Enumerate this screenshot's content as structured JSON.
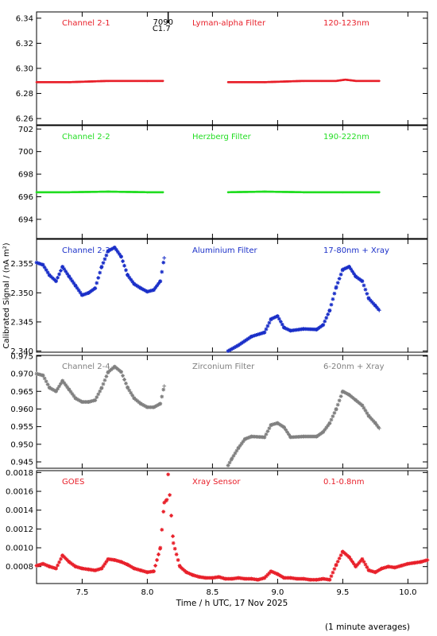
{
  "footer_note": "(1 minute averages)",
  "chart_data": [
    {
      "type": "scatter",
      "ylim": [
        6.255,
        6.345
      ],
      "yticks": [
        6.26,
        6.28,
        6.3,
        6.32,
        6.34
      ],
      "ytick_labels": [
        "6.26",
        "6.28",
        "6.30",
        "6.32",
        "6.34"
      ],
      "color": "#e8202a",
      "labels": {
        "channel": "Channel 2-1",
        "filter": "Lyman-alpha Filter",
        "band": "120-123nm"
      },
      "annotations": [
        {
          "text": "7090",
          "x": 8.15,
          "y": 6.34
        },
        {
          "text": "C1.7",
          "x": 8.13,
          "y": 6.335
        }
      ],
      "event_line_x": 8.16,
      "series": [
        {
          "x": [
            7.15,
            7.4,
            7.7,
            8.0,
            8.12
          ],
          "y": [
            6.289,
            6.289,
            6.29,
            6.29,
            6.29
          ]
        },
        {
          "x": [
            8.62,
            8.9,
            9.2,
            9.45,
            9.52,
            9.6,
            9.78
          ],
          "y": [
            6.289,
            6.289,
            6.29,
            6.29,
            6.291,
            6.29,
            6.29
          ]
        }
      ]
    },
    {
      "type": "scatter",
      "ylim": [
        692.3,
        702.3
      ],
      "yticks": [
        694,
        696,
        698,
        700,
        702
      ],
      "ytick_labels": [
        "694",
        "696",
        "698",
        "700",
        "702"
      ],
      "color": "#22dd22",
      "labels": {
        "channel": "Channel 2-2",
        "filter": "Herzberg Filter",
        "band": "190-222nm"
      },
      "series": [
        {
          "x": [
            7.15,
            7.4,
            7.7,
            8.0,
            8.12
          ],
          "y": [
            696.4,
            696.4,
            696.45,
            696.4,
            696.4
          ]
        },
        {
          "x": [
            8.62,
            8.9,
            9.2,
            9.5,
            9.78
          ],
          "y": [
            696.4,
            696.45,
            696.4,
            696.4,
            696.4
          ]
        }
      ]
    },
    {
      "type": "scatter",
      "ylim": [
        2.3398,
        2.3592
      ],
      "yticks": [
        2.34,
        2.345,
        2.35,
        2.355
      ],
      "ytick_labels": [
        "2.340",
        "2.345",
        "2.350",
        "2.355"
      ],
      "color": "#1a2fc8",
      "labels": {
        "channel": "Channel 2-3",
        "filter": "Aluminium Filter",
        "band": "17-80nm + Xray"
      },
      "ylabel": "Calibrated Signal / (nA m²)",
      "series": [
        {
          "x": [
            7.15,
            7.2,
            7.25,
            7.3,
            7.35,
            7.4,
            7.45,
            7.5,
            7.55,
            7.6,
            7.65,
            7.7,
            7.75,
            7.8,
            7.85,
            7.9,
            7.95,
            8.0,
            8.05,
            8.1,
            8.13
          ],
          "y": [
            2.3552,
            2.3548,
            2.353,
            2.352,
            2.3545,
            2.3528,
            2.3512,
            2.3496,
            2.35,
            2.3508,
            2.3545,
            2.3572,
            2.3578,
            2.3562,
            2.353,
            2.3515,
            2.3508,
            2.3502,
            2.3505,
            2.352,
            2.356
          ]
        },
        {
          "x": [
            8.62,
            8.7,
            8.8,
            8.9,
            8.95,
            9.0,
            9.05,
            9.1,
            9.2,
            9.3,
            9.35,
            9.4,
            9.45,
            9.5,
            9.55,
            9.6,
            9.65,
            9.7,
            9.75,
            9.78
          ],
          "y": [
            2.34,
            2.341,
            2.3425,
            2.3432,
            2.3455,
            2.346,
            2.344,
            2.3435,
            2.3438,
            2.3437,
            2.3445,
            2.347,
            2.351,
            2.354,
            2.3545,
            2.3528,
            2.352,
            2.349,
            2.3478,
            2.347
          ]
        }
      ]
    },
    {
      "type": "scatter",
      "ylim": [
        0.9432,
        0.9752
      ],
      "yticks": [
        0.945,
        0.95,
        0.955,
        0.96,
        0.965,
        0.97,
        0.975
      ],
      "ytick_labels": [
        "0.945",
        "0.950",
        "0.955",
        "0.960",
        "0.965",
        "0.970",
        "0.975"
      ],
      "color": "#808080",
      "labels": {
        "channel": "Channel 2-4",
        "filter": "Zirconium Filter",
        "band": "6-20nm + Xray"
      },
      "series": [
        {
          "x": [
            7.15,
            7.2,
            7.25,
            7.3,
            7.35,
            7.4,
            7.45,
            7.5,
            7.55,
            7.6,
            7.65,
            7.7,
            7.75,
            7.8,
            7.85,
            7.9,
            7.95,
            8.0,
            8.05,
            8.1,
            8.13
          ],
          "y": [
            0.97,
            0.9695,
            0.966,
            0.965,
            0.968,
            0.9655,
            0.963,
            0.962,
            0.962,
            0.9625,
            0.966,
            0.9705,
            0.972,
            0.9705,
            0.966,
            0.963,
            0.9615,
            0.9605,
            0.9605,
            0.9615,
            0.9665
          ]
        },
        {
          "x": [
            8.62,
            8.65,
            8.7,
            8.75,
            8.8,
            8.9,
            8.95,
            9.0,
            9.05,
            9.1,
            9.2,
            9.3,
            9.35,
            9.4,
            9.45,
            9.5,
            9.55,
            9.6,
            9.65,
            9.7,
            9.75,
            9.78
          ],
          "y": [
            0.944,
            0.946,
            0.949,
            0.9515,
            0.9522,
            0.952,
            0.9555,
            0.956,
            0.9548,
            0.952,
            0.9522,
            0.9522,
            0.9535,
            0.956,
            0.96,
            0.965,
            0.964,
            0.9625,
            0.961,
            0.958,
            0.956,
            0.9545
          ]
        }
      ]
    },
    {
      "type": "scatter",
      "ylim": [
        0.00062,
        0.00182
      ],
      "yticks": [
        0.0008,
        0.001,
        0.0012,
        0.0014,
        0.0016,
        0.0018
      ],
      "ytick_labels": [
        "0.0008",
        "0.0010",
        "0.0012",
        "0.0014",
        "0.0016",
        "0.0018"
      ],
      "color": "#e8202a",
      "labels": {
        "channel": "GOES",
        "filter": "Xray Sensor",
        "band": "0.1-0.8nm"
      },
      "series": [
        {
          "x": [
            7.15,
            7.2,
            7.25,
            7.3,
            7.35,
            7.4,
            7.45,
            7.5,
            7.55,
            7.6,
            7.65,
            7.7,
            7.75,
            7.8,
            7.85,
            7.9,
            7.95,
            8.0,
            8.05,
            8.1,
            8.13,
            8.15,
            8.16,
            8.2,
            8.25,
            8.3,
            8.35,
            8.4,
            8.45,
            8.5,
            8.55,
            8.6,
            8.65,
            8.7,
            8.75,
            8.8,
            8.85,
            8.9,
            8.95,
            9.0,
            9.05,
            9.1,
            9.15,
            9.2,
            9.25,
            9.3,
            9.35,
            9.4,
            9.45,
            9.5,
            9.55,
            9.6,
            9.65,
            9.7,
            9.75,
            9.8,
            9.85,
            9.9,
            9.95,
            10.0,
            10.05,
            10.1,
            10.15
          ],
          "y": [
            0.00081,
            0.00083,
            0.0008,
            0.00078,
            0.00092,
            0.00085,
            0.0008,
            0.00078,
            0.00077,
            0.00076,
            0.00078,
            0.00088,
            0.00087,
            0.00085,
            0.00082,
            0.00078,
            0.00076,
            0.00074,
            0.00075,
            0.001,
            0.00148,
            0.00151,
            0.00178,
            0.00105,
            0.0008,
            0.00074,
            0.00071,
            0.00069,
            0.00068,
            0.00068,
            0.00069,
            0.00067,
            0.00067,
            0.00068,
            0.00067,
            0.00067,
            0.00066,
            0.00068,
            0.00075,
            0.00072,
            0.00068,
            0.00068,
            0.00067,
            0.00067,
            0.00066,
            0.00066,
            0.00067,
            0.00066,
            0.00082,
            0.00096,
            0.0009,
            0.0008,
            0.00088,
            0.00076,
            0.00074,
            0.00078,
            0.0008,
            0.00079,
            0.00081,
            0.00083,
            0.00084,
            0.00085,
            0.00087
          ]
        }
      ]
    }
  ],
  "x_axis": {
    "xlim": [
      7.15,
      10.15
    ],
    "ticks": [
      7.5,
      8.0,
      8.5,
      9.0,
      9.5,
      10.0
    ],
    "tick_labels": [
      "7.5",
      "8.0",
      "8.5",
      "9.0",
      "9.5",
      "10.0"
    ],
    "xlabel": "Time / h UTC, 17 Nov 2025"
  }
}
